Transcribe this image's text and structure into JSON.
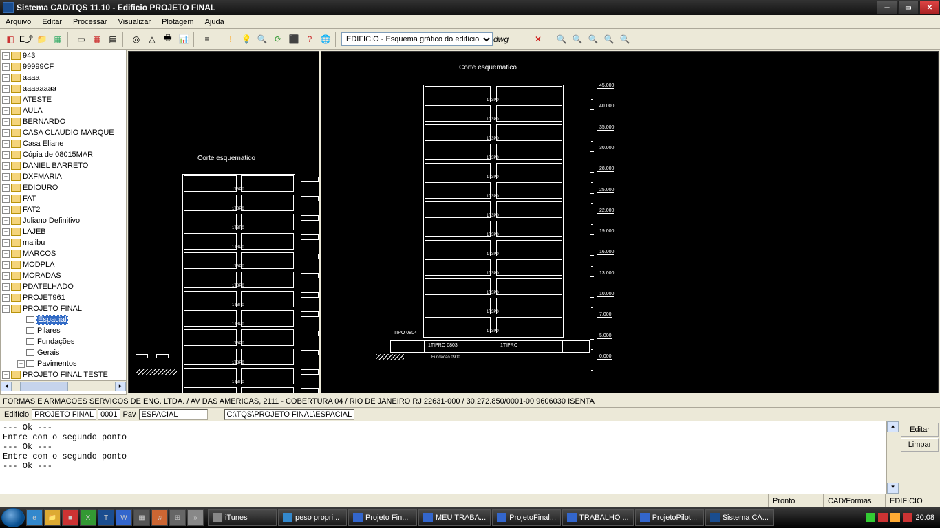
{
  "window": {
    "title": "Sistema CAD/TQS 11.10 - Edificio PROJETO FINAL"
  },
  "menu": [
    "Arquivo",
    "Editar",
    "Processar",
    "Visualizar",
    "Plotagem",
    "Ajuda"
  ],
  "toolbar": {
    "dropdown": "EDIFICIO - Esquema gráfico do edifício"
  },
  "tree": {
    "items": [
      {
        "label": "943"
      },
      {
        "label": "99999CF"
      },
      {
        "label": "aaaa"
      },
      {
        "label": "aaaaaaaa"
      },
      {
        "label": "ATESTE"
      },
      {
        "label": "AULA"
      },
      {
        "label": "BERNARDO"
      },
      {
        "label": "CASA CLAUDIO MARQUE"
      },
      {
        "label": "Casa Eliane"
      },
      {
        "label": "Cópia de 08015MAR"
      },
      {
        "label": "DANIEL BARRETO"
      },
      {
        "label": "DXFMARIA"
      },
      {
        "label": "EDIOURO"
      },
      {
        "label": "FAT"
      },
      {
        "label": "FAT2"
      },
      {
        "label": "Juliano Definitivo"
      },
      {
        "label": "LAJEB"
      },
      {
        "label": "malibu"
      },
      {
        "label": "MARCOS"
      },
      {
        "label": "MODPLA"
      },
      {
        "label": "MORADAS"
      },
      {
        "label": "PDATELHADO"
      },
      {
        "label": "PROJET961"
      },
      {
        "label": "PROJETO FINAL",
        "expanded": true,
        "children": [
          {
            "label": "Espacial",
            "selected": true
          },
          {
            "label": "Pilares"
          },
          {
            "label": "Fundações"
          },
          {
            "label": "Gerais"
          },
          {
            "label": "Pavimentos",
            "exp": true
          }
        ]
      },
      {
        "label": "PROJETO FINAL TESTE"
      }
    ]
  },
  "drawing": {
    "title": "Corte esquematico",
    "levels": [
      "45.000",
      "40.000",
      "35.000",
      "30.000",
      "28.000",
      "25.000",
      "22.000",
      "19.000",
      "16.000",
      "13.000",
      "10.000",
      "7.000",
      "5.000",
      "0.000"
    ],
    "ground_labels": {
      "left": "TIPO  0804",
      "mid": "1TIPRO  0803",
      "right": "1TIPRO"
    },
    "foundation": "Fundacao 0900"
  },
  "strip1": "FORMAS E ARMACOES SERVICOS DE ENG. LTDA. / AV DAS AMERICAS, 2111 - COBERTURA 04 / RIO DE JANEIRO RJ 22631-000 / 30.272.850/0001-00 9606030 ISENTA",
  "strip2": {
    "lbl_edificio": "Edifício",
    "val_edificio": "PROJETO FINAL",
    "val_num": "0001",
    "lbl_pav": "Pav",
    "val_pav": "ESPACIAL",
    "path": "C:\\TQS\\PROJETO FINAL\\ESPACIAL"
  },
  "console": "--- Ok ---\nEntre com o segundo ponto\n--- Ok ---\nEntre com o segundo ponto\n--- Ok ---",
  "console_buttons": {
    "editar": "Editar",
    "limpar": "Limpar"
  },
  "status": {
    "pronto": "Pronto",
    "cad": "CAD/Formas",
    "edif": "EDIFICIO"
  },
  "taskbar": {
    "items": [
      "iTunes",
      "peso propri...",
      "Projeto Fin...",
      "MEU TRABA...",
      "ProjetoFinal...",
      "TRABALHO ...",
      "ProjetoPilot...",
      "Sistema CA..."
    ],
    "clock": "20:08"
  }
}
